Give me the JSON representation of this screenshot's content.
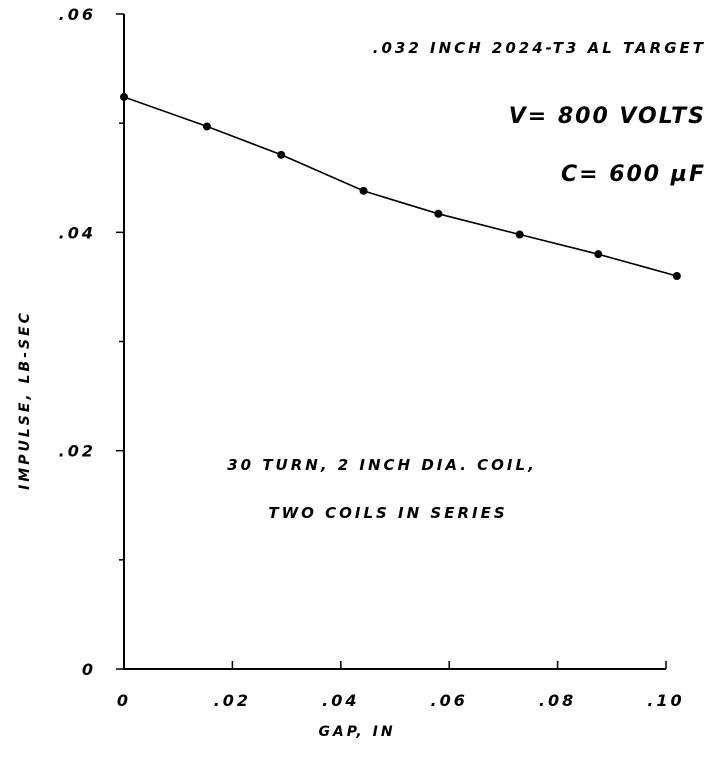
{
  "chart_data": {
    "type": "line",
    "xlabel": "GAP, IN",
    "ylabel": "IMPULSE, LB-SEC",
    "xlim": [
      0,
      0.1
    ],
    "ylim": [
      0,
      0.06
    ],
    "x_ticks": [
      0,
      0.02,
      0.04,
      0.06,
      0.08,
      0.1
    ],
    "x_tick_labels": [
      "0",
      ".02",
      ".04",
      ".06",
      ".08",
      ".10"
    ],
    "y_ticks": [
      0,
      0.02,
      0.04,
      0.06
    ],
    "y_tick_labels": [
      "0",
      ".02",
      ".04",
      ".06"
    ],
    "y_minor_ticks": [
      0.01,
      0.03,
      0.05
    ],
    "grid": false,
    "series": [
      {
        "x": [
          0.0,
          0.0153,
          0.029,
          0.0442,
          0.058,
          0.073,
          0.0875,
          0.102
        ],
        "y": [
          0.0524,
          0.0497,
          0.0471,
          0.0438,
          0.0417,
          0.0398,
          0.038,
          0.036
        ]
      }
    ],
    "annotations": {
      "target": ".032 INCH 2024-T3 AL TARGET",
      "voltage": "V= 800 VOLTS",
      "capacitance": "C= 600 µF",
      "coil_line1": "30 TURN, 2 INCH DIA. COIL,",
      "coil_line2": "TWO COILS IN SERIES"
    }
  }
}
